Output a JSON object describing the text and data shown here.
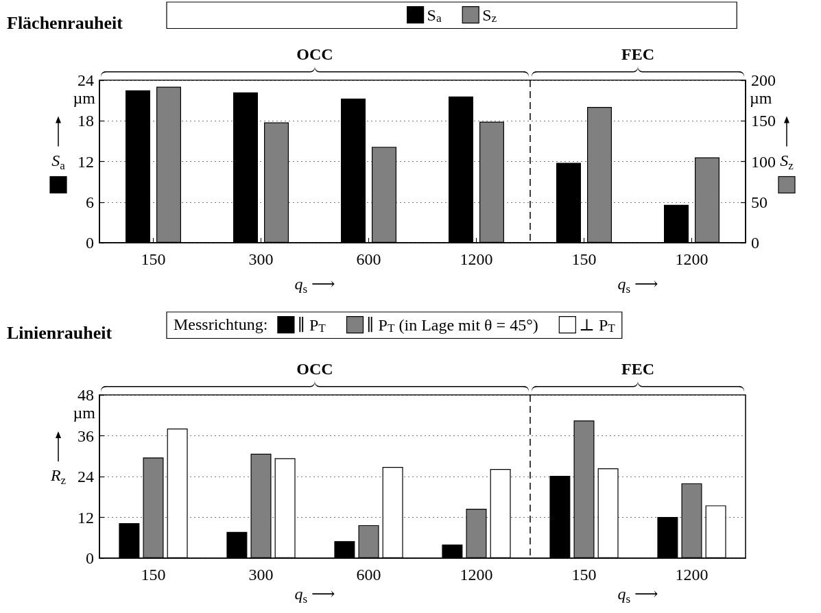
{
  "chart_data": [
    {
      "type": "bar",
      "title": "Flächenrauheit",
      "categories": [
        "150",
        "300",
        "600",
        "1200",
        "150",
        "1200"
      ],
      "xlabel": "q$_{s}$ ⟶",
      "ylabel": "S$_{a}$",
      "y2label": "S$_{z}$",
      "series": [
        {
          "name": "S$_{a}$",
          "color": "#000000",
          "values": [
            22.5,
            22.2,
            21.3,
            21.6,
            11.8,
            5.6
          ]
        },
        {
          "name": "S$_{z}$",
          "color": "#808080",
          "axis": "y2",
          "values": [
            192,
            148,
            118,
            149,
            167,
            105
          ]
        }
      ],
      "ylim": [
        0,
        24
      ],
      "yticks": [
        0,
        6,
        12,
        18,
        24
      ],
      "y2lim": [
        0,
        200
      ],
      "y2ticks": [
        0,
        50,
        100,
        150,
        200
      ],
      "grid": "y",
      "legend": "top",
      "annotations": [
        "OCC",
        "FEC",
        "µm",
        "µm"
      ]
    },
    {
      "type": "bar",
      "title": "Linienrauheit",
      "legend_title": "Messrichtung:",
      "categories": [
        "150",
        "300",
        "600",
        "1200",
        "150",
        "1200"
      ],
      "xlabel": "q$_{s}$ ⟶",
      "ylabel": "R$_{z}$",
      "series": [
        {
          "name": "∥ P$_{T}$",
          "color": "#000000",
          "values": [
            10.3,
            7.7,
            5.0,
            4.0,
            24.2,
            12.1
          ]
        },
        {
          "name": "∥ P$_{T}$ (in Lage mit θ = 45°)",
          "color": "#808080",
          "values": [
            29.6,
            30.7,
            9.7,
            14.5,
            40.5,
            22.0
          ]
        },
        {
          "name": "⊥ P$_{T}$",
          "color": "#ffffff",
          "values": [
            38.1,
            29.4,
            26.8,
            26.2,
            26.4,
            15.5
          ]
        }
      ],
      "ylim": [
        0,
        48
      ],
      "yticks": [
        0,
        12,
        24,
        36,
        48
      ],
      "grid": "y",
      "legend": "top",
      "annotations": [
        "OCC",
        "FEC",
        "µm"
      ]
    }
  ]
}
